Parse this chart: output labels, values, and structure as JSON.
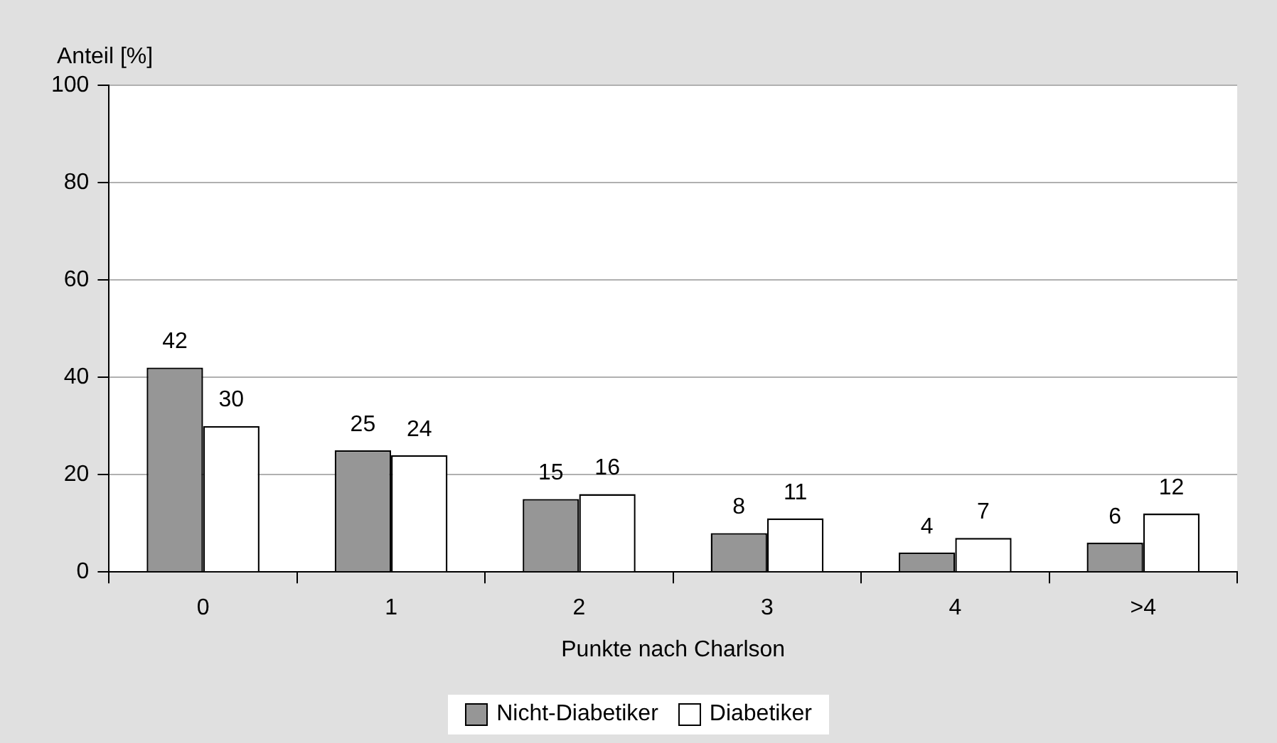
{
  "chart_data": {
    "type": "bar",
    "xlabel": "Punkte nach Charlson",
    "ylabel": "Anteil [%]",
    "categories": [
      "0",
      "1",
      "2",
      "3",
      "4",
      ">4"
    ],
    "series": [
      {
        "name": "Nicht-Diabetiker",
        "color": "#969696",
        "values": [
          42,
          25,
          15,
          8,
          4,
          6
        ]
      },
      {
        "name": "Diabetiker",
        "color": "#ffffff",
        "values": [
          30,
          24,
          16,
          11,
          7,
          12
        ]
      }
    ],
    "ylim": [
      0,
      100
    ],
    "yticks": [
      0,
      20,
      40,
      60,
      80,
      100
    ],
    "grid": "y",
    "legend": "bottom",
    "data_labels": true
  }
}
